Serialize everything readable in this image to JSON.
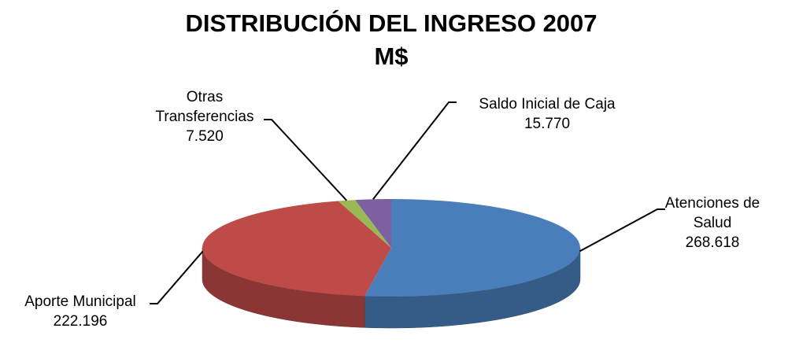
{
  "chart_data": {
    "type": "pie3d",
    "title": "DISTRIBUCIÓN DEL INGRESO 2007",
    "subtitle": "M$",
    "categories": [
      "Atenciones de Salud",
      "Aporte Municipal",
      "Otras Transferencias",
      "Saldo Inicial de Caja"
    ],
    "values": [
      268618,
      222196,
      7520,
      15770
    ],
    "value_labels": [
      "268.618",
      "222.196",
      "7.520",
      "15.770"
    ],
    "colors": [
      "#4a7ebb",
      "#be4b48",
      "#98b954",
      "#7d60a0"
    ]
  }
}
